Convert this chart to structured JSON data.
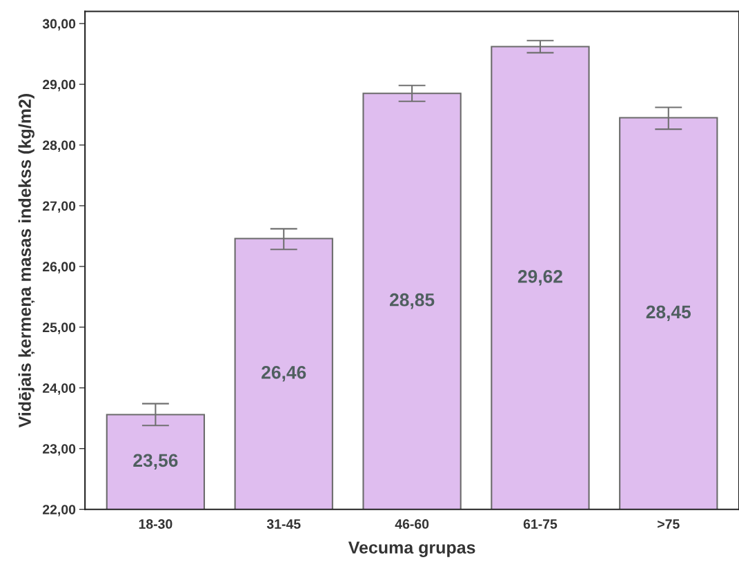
{
  "chart_data": {
    "type": "bar",
    "xlabel": "Vecuma grupas",
    "ylabel": "Vidējais ķermeņa masas indekss (kg/m2)",
    "categories": [
      "18-30",
      "31-45",
      "46-60",
      "61-75",
      ">75"
    ],
    "values": [
      23.56,
      26.46,
      28.85,
      29.62,
      28.45
    ],
    "value_labels": [
      "23,56",
      "26,46",
      "28,85",
      "29,62",
      "28,45"
    ],
    "errors": [
      [
        23.38,
        23.74
      ],
      [
        26.28,
        26.62
      ],
      [
        28.72,
        28.98
      ],
      [
        29.52,
        29.72
      ],
      [
        28.26,
        28.62
      ]
    ],
    "color": "#dfbdef",
    "ylim": [
      22,
      30.2
    ],
    "yticks": [
      {
        "value": 22,
        "label": "22,00"
      },
      {
        "value": 23,
        "label": "23,00"
      },
      {
        "value": 24,
        "label": "24,00"
      },
      {
        "value": 25,
        "label": "25,00"
      },
      {
        "value": 26,
        "label": "26,00"
      },
      {
        "value": 27,
        "label": "27,00"
      },
      {
        "value": 28,
        "label": "28,00"
      },
      {
        "value": 29,
        "label": "29,00"
      },
      {
        "value": 30,
        "label": "30,00"
      }
    ],
    "grid": false
  }
}
